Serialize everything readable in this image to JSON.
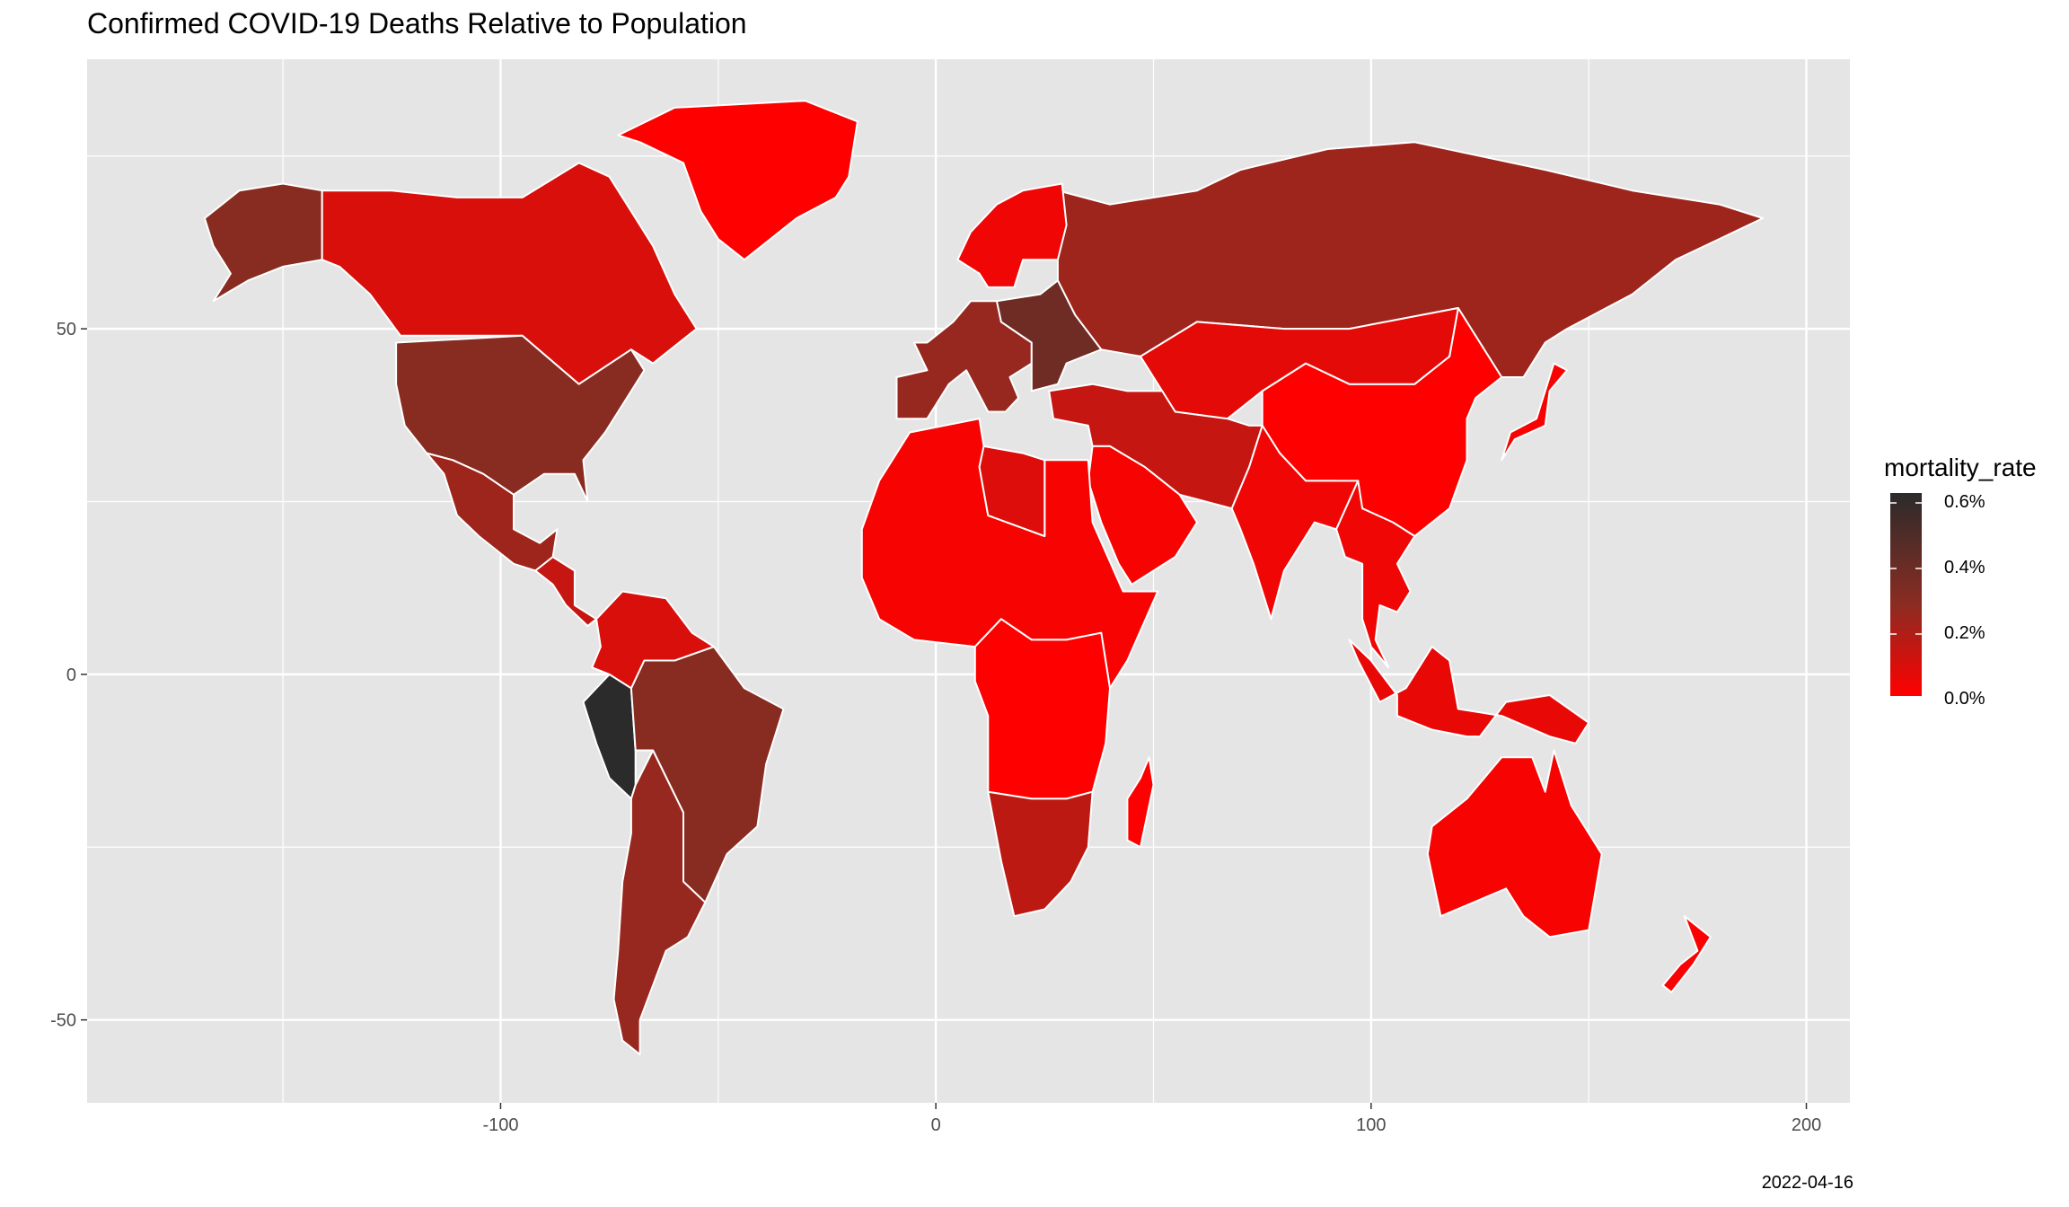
{
  "title": "Confirmed COVID-19 Deaths Relative to Population",
  "caption": "2022-04-16",
  "legend": {
    "title": "mortality_rate",
    "labels": [
      "0.6%",
      "0.4%",
      "0.2%",
      "0.0%"
    ],
    "colors": {
      "low": "#ff0000",
      "mid": "#8b2c22",
      "high": "#2b2b2b"
    }
  },
  "axes": {
    "x_ticks": [
      -100,
      0,
      100,
      200
    ],
    "y_ticks": [
      50,
      0,
      -50
    ],
    "xlim": [
      -195,
      210
    ],
    "ylim": [
      -62,
      89
    ]
  },
  "colors": {
    "panel": "#e5e5e5",
    "grid": "#ffffff",
    "border": "#ffffff"
  },
  "regions": [
    {
      "name": "greenland",
      "rate": 0.0005
    },
    {
      "name": "alaska-usa",
      "rate": 0.31
    },
    {
      "name": "canada",
      "rate": 0.1
    },
    {
      "name": "united-states",
      "rate": 0.31
    },
    {
      "name": "mexico",
      "rate": 0.25
    },
    {
      "name": "central-america",
      "rate": 0.15
    },
    {
      "name": "peru",
      "rate": 0.64
    },
    {
      "name": "brazil",
      "rate": 0.31
    },
    {
      "name": "argentina-chile",
      "rate": 0.27
    },
    {
      "name": "venezuela-colombia",
      "rate": 0.1
    },
    {
      "name": "russia",
      "rate": 0.25
    },
    {
      "name": "europe-west",
      "rate": 0.27
    },
    {
      "name": "europe-east",
      "rate": 0.4
    },
    {
      "name": "scandinavia",
      "rate": 0.04
    },
    {
      "name": "china",
      "rate": 0.0003
    },
    {
      "name": "mongolia-kazakhstan",
      "rate": 0.07
    },
    {
      "name": "middle-east",
      "rate": 0.15
    },
    {
      "name": "arabia",
      "rate": 0.02
    },
    {
      "name": "india",
      "rate": 0.04
    },
    {
      "name": "southeast-asia",
      "rate": 0.04
    },
    {
      "name": "indonesia",
      "rate": 0.06
    },
    {
      "name": "japan",
      "rate": 0.02
    },
    {
      "name": "north-africa",
      "rate": 0.02
    },
    {
      "name": "libya",
      "rate": 0.09
    },
    {
      "name": "central-africa",
      "rate": 0.002
    },
    {
      "name": "southern-africa",
      "rate": 0.17
    },
    {
      "name": "madagascar",
      "rate": 0.003
    },
    {
      "name": "australia",
      "rate": 0.02
    },
    {
      "name": "new-zealand",
      "rate": 0.01
    }
  ]
}
